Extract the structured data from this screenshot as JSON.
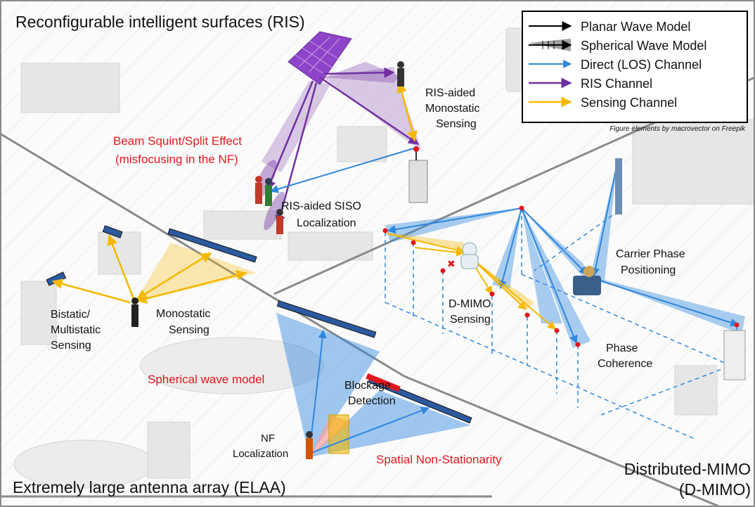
{
  "regions": {
    "ris": "Reconfigurable intelligent surfaces (RIS)",
    "elaa": "Extremely large antenna array (ELAA)",
    "dmimo_1": "Distributed-MIMO",
    "dmimo_2": "(D-MIMO)"
  },
  "legend": {
    "items": [
      {
        "label": "Planar Wave Model",
        "color": "#000000"
      },
      {
        "label": "Spherical Wave Model",
        "color": "#555555"
      },
      {
        "label": "Direct (LOS) Channel",
        "color": "#2e86de"
      },
      {
        "label": "RIS Channel",
        "color": "#7030a0"
      },
      {
        "label": "Sensing Channel",
        "color": "#f5b800"
      }
    ],
    "credit": "Figure elements by macrovector on Freepik"
  },
  "labels": {
    "ris_mono_1": "RIS-aided",
    "ris_mono_2": "Monostatic",
    "ris_mono_3": "Sensing",
    "beam_squint_1": "Beam Squint/Split Effect",
    "beam_squint_2": "(misfocusing in the NF)",
    "ris_siso_1": "RIS-aided SISO",
    "ris_siso_2": "Localization",
    "bistatic_1": "Bistatic/",
    "bistatic_2": "Multistatic",
    "bistatic_3": "Sensing",
    "monostatic_1": "Monostatic",
    "monostatic_2": "Sensing",
    "spherical": "Spherical wave model",
    "blockage_1": "Blockage",
    "blockage_2": "Detection",
    "nf_loc_1": "NF",
    "nf_loc_2": "Localization",
    "spatial": "Spatial Non-Stationarity",
    "dmimo_sensing_1": "D-MIMO",
    "dmimo_sensing_2": "Sensing",
    "carrier_1": "Carrier Phase",
    "carrier_2": "Positioning",
    "phase_1": "Phase",
    "phase_2": "Coherence"
  },
  "colors": {
    "blue": "#2e86de",
    "purple": "#7030a0",
    "yellow": "#f5b800",
    "red_text": "#e3171d",
    "divider": "#8a8a8a"
  }
}
